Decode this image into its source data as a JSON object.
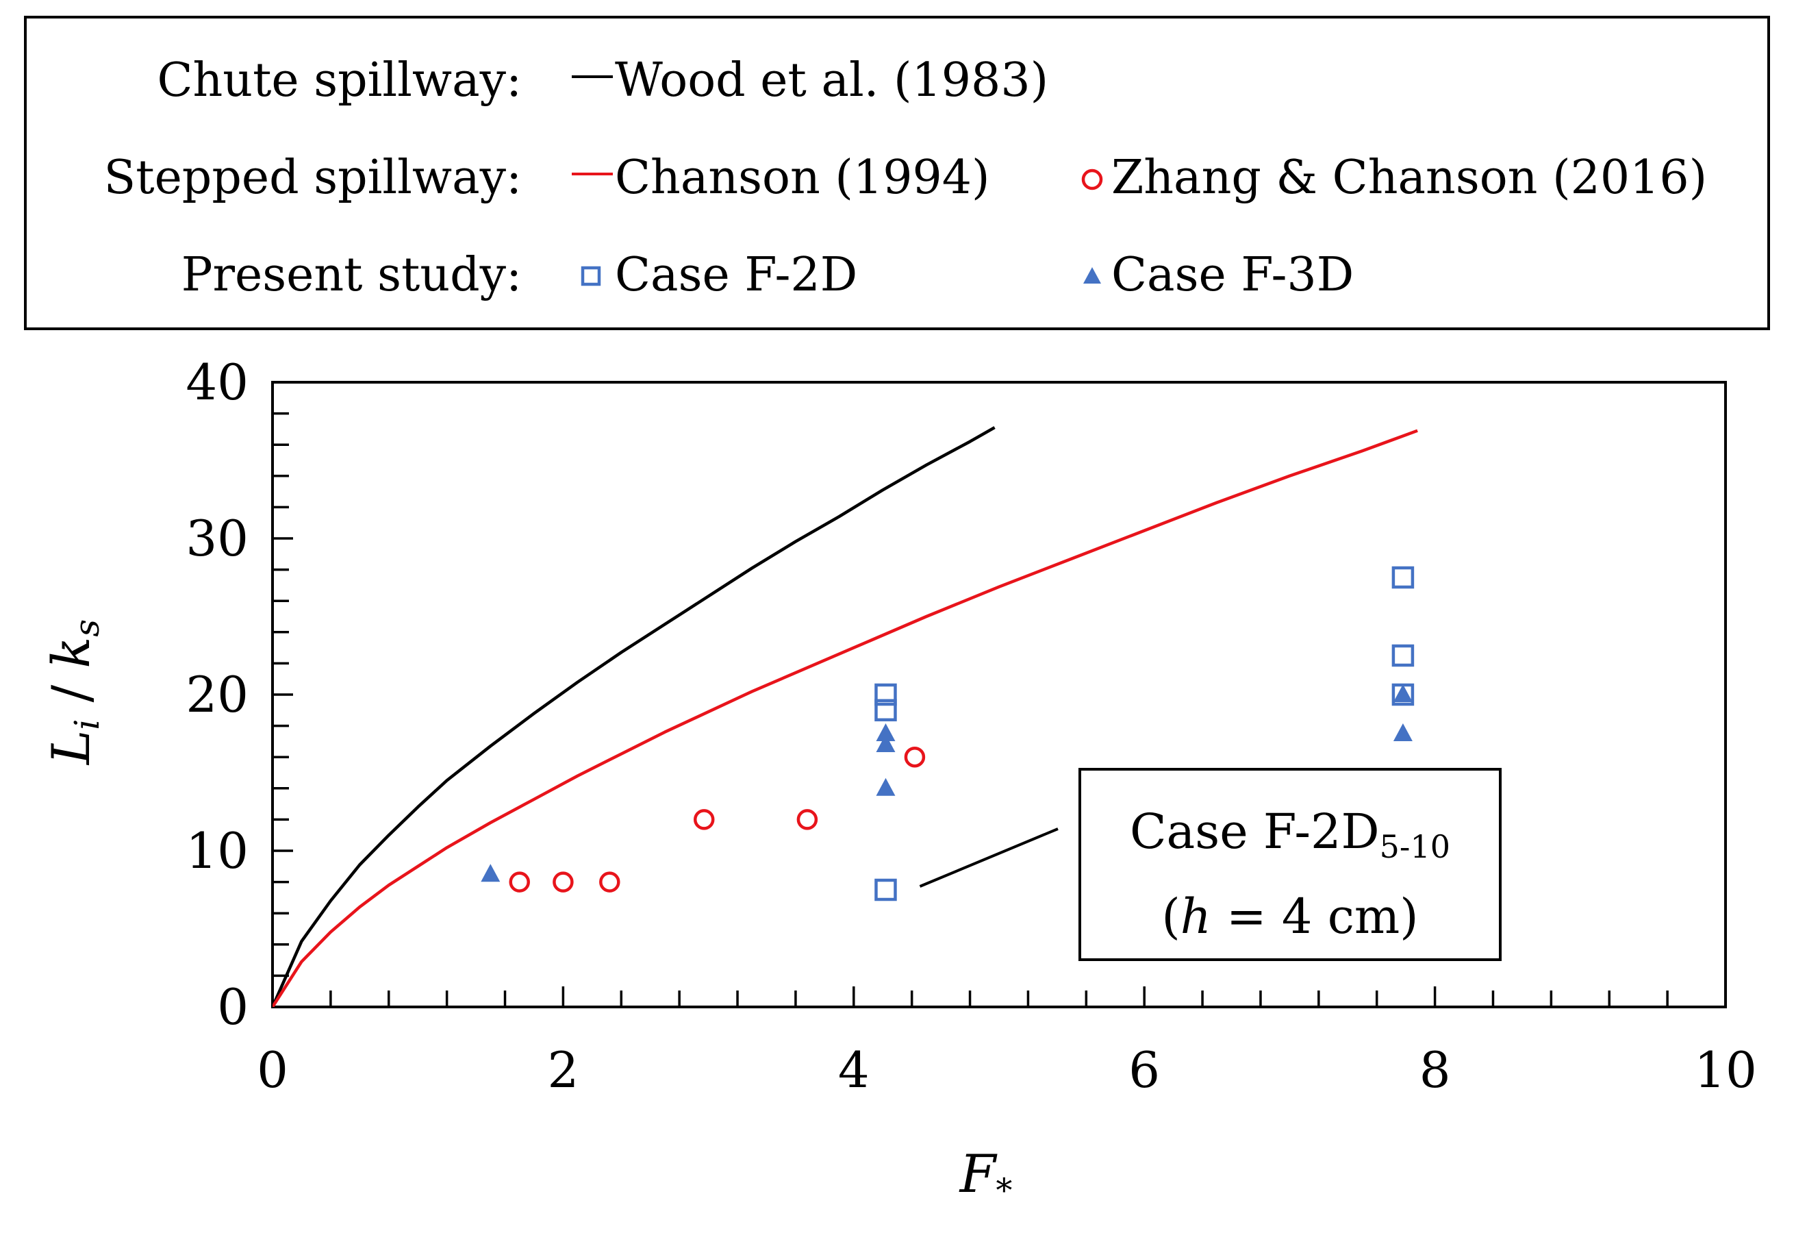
{
  "legend": {
    "rows": [
      {
        "label": "Chute spillway:",
        "entries": [
          {
            "name": "Wood et al. (1983)",
            "symbol": "line",
            "color": "#000000"
          }
        ]
      },
      {
        "label": "Stepped spillway:",
        "entries": [
          {
            "name": "Chanson (1994)",
            "symbol": "line",
            "color": "#e8141b"
          },
          {
            "name": "Zhang & Chanson (2016)",
            "symbol": "circle",
            "color": "#e8141b"
          }
        ]
      },
      {
        "label": "Present study:",
        "entries": [
          {
            "name": "Case F-2D",
            "symbol": "square",
            "color": "#4472c4"
          },
          {
            "name": "Case F-3D",
            "symbol": "triangle",
            "color": "#4472c4"
          }
        ]
      }
    ]
  },
  "annotation": {
    "line1_main": "Case F-2D",
    "line1_sub": "5-10",
    "line2_open": "(",
    "line2_var": "h",
    "line2_rest": " = 4 cm)",
    "points_to": {
      "x": 4.22,
      "y": 7.5
    }
  },
  "chart_data": {
    "type": "scatter",
    "xlabel": "F",
    "xlabel_sub": "*",
    "ylabel_main": "L",
    "ylabel_sub": "i",
    "ylabel_sep": " / ",
    "ylabel_main2": "k",
    "ylabel_sub2": "s",
    "xlim": [
      0,
      10
    ],
    "ylim": [
      0,
      40
    ],
    "xticks": [
      "0",
      "2",
      "4",
      "6",
      "8",
      "10"
    ],
    "yticks": [
      "0",
      "10",
      "20",
      "30",
      "40"
    ],
    "grid": false,
    "series": [
      {
        "name": "Wood et al. (1983)",
        "kind": "line",
        "color": "#000000",
        "points": [
          [
            0,
            0
          ],
          [
            0.2,
            4.2
          ],
          [
            0.4,
            6.8
          ],
          [
            0.6,
            9.1
          ],
          [
            0.8,
            11.0
          ],
          [
            1.0,
            12.8
          ],
          [
            1.2,
            14.5
          ],
          [
            1.5,
            16.7
          ],
          [
            1.8,
            18.8
          ],
          [
            2.1,
            20.8
          ],
          [
            2.4,
            22.7
          ],
          [
            2.7,
            24.5
          ],
          [
            3.0,
            26.3
          ],
          [
            3.3,
            28.1
          ],
          [
            3.6,
            29.8
          ],
          [
            3.9,
            31.4
          ],
          [
            4.2,
            33.1
          ],
          [
            4.5,
            34.7
          ],
          [
            4.8,
            36.2
          ],
          [
            4.97,
            37.1
          ]
        ]
      },
      {
        "name": "Chanson (1994)",
        "kind": "line",
        "color": "#e8141b",
        "points": [
          [
            0,
            0
          ],
          [
            0.2,
            2.9
          ],
          [
            0.4,
            4.8
          ],
          [
            0.6,
            6.4
          ],
          [
            0.8,
            7.8
          ],
          [
            1.0,
            9.0
          ],
          [
            1.2,
            10.2
          ],
          [
            1.5,
            11.8
          ],
          [
            1.8,
            13.3
          ],
          [
            2.1,
            14.8
          ],
          [
            2.4,
            16.2
          ],
          [
            2.7,
            17.6
          ],
          [
            3.0,
            18.9
          ],
          [
            3.3,
            20.2
          ],
          [
            3.6,
            21.4
          ],
          [
            4.0,
            23.0
          ],
          [
            4.5,
            25.0
          ],
          [
            5.0,
            26.9
          ],
          [
            5.5,
            28.7
          ],
          [
            6.0,
            30.5
          ],
          [
            6.5,
            32.3
          ],
          [
            7.0,
            34.0
          ],
          [
            7.5,
            35.6
          ],
          [
            7.88,
            36.9
          ]
        ]
      },
      {
        "name": "Zhang & Chanson (2016)",
        "kind": "circle",
        "color": "#e8141b",
        "points": [
          [
            1.7,
            8
          ],
          [
            2.0,
            8
          ],
          [
            2.32,
            8
          ],
          [
            2.97,
            12
          ],
          [
            3.68,
            12
          ],
          [
            4.42,
            16
          ]
        ]
      },
      {
        "name": "Case F-2D",
        "kind": "square",
        "color": "#4472c4",
        "points": [
          [
            4.22,
            20
          ],
          [
            4.22,
            19
          ],
          [
            4.22,
            7.5
          ],
          [
            7.78,
            27.5
          ],
          [
            7.78,
            22.5
          ],
          [
            7.78,
            20
          ]
        ]
      },
      {
        "name": "Case F-3D",
        "kind": "triangle",
        "color": "#4472c4",
        "points": [
          [
            1.5,
            8.5
          ],
          [
            4.22,
            17.5
          ],
          [
            4.22,
            16.8
          ],
          [
            4.22,
            14
          ],
          [
            7.78,
            20
          ],
          [
            7.78,
            17.5
          ]
        ]
      }
    ]
  }
}
